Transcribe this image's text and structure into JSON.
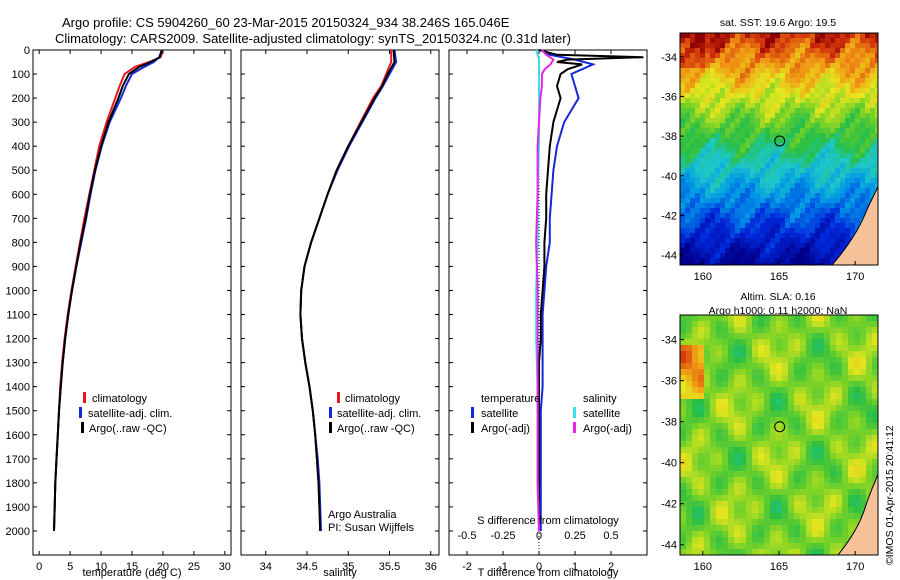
{
  "header": {
    "line1": "Argo profile: CS 5904260_60 23-Mar-2015 20150324_934 38.246S 165.046E",
    "line2": "Climatology: CARS2009. Satellite-adjusted climatology: synTS_20150324.nc (0.31d later)"
  },
  "depth_ticks": [
    "0",
    "100",
    "200",
    "300",
    "400",
    "500",
    "600",
    "700",
    "800",
    "900",
    "1000",
    "1100",
    "1200",
    "1300",
    "1400",
    "1500",
    "1600",
    "1700",
    "1800",
    "1900",
    "2000"
  ],
  "colors": {
    "climatology": "#e8191d",
    "satellite": "#1428d8",
    "argo": "#000000",
    "cyan": "#39e0e8",
    "magenta": "#e624e6",
    "land": "#f5c29a"
  },
  "chart_data": [
    {
      "type": "line",
      "name": "temperature-profile",
      "xlabel": "temperature (deg C)",
      "xlim": [
        -1,
        31
      ],
      "ylim": [
        0,
        2100
      ],
      "x_ticks": [
        "0",
        "5",
        "10",
        "15",
        "20",
        "25",
        "30"
      ],
      "legend": [
        "climatology",
        "satellite-adj. clim.",
        "Argo(..raw -QC)"
      ],
      "series": [
        {
          "name": "climatology",
          "depth": [
            0,
            30,
            50,
            70,
            100,
            150,
            200,
            300,
            400,
            500,
            600,
            700,
            800,
            900,
            1000,
            1100,
            1200,
            1300,
            1400,
            1500,
            1600,
            1700,
            1800,
            1900,
            2000
          ],
          "values": [
            20.0,
            19.6,
            17.8,
            15.5,
            13.8,
            13.0,
            12.3,
            10.9,
            9.7,
            8.9,
            8.1,
            7.3,
            6.6,
            5.9,
            5.2,
            4.6,
            4.1,
            3.7,
            3.4,
            3.2,
            3.0,
            2.8,
            2.6,
            2.5,
            2.4
          ]
        },
        {
          "name": "satellite-adj. clim.",
          "depth": [
            0,
            30,
            50,
            70,
            100,
            150,
            200,
            300,
            400,
            500,
            600,
            700,
            800,
            900,
            1000,
            1100,
            1200,
            1300,
            1400,
            1500,
            1600,
            1700,
            1800,
            1900,
            2000
          ],
          "values": [
            19.8,
            19.4,
            18.5,
            17.0,
            15.0,
            14.0,
            13.2,
            11.4,
            10.1,
            9.1,
            8.3,
            7.6,
            6.8,
            6.0,
            5.3,
            4.7,
            4.2,
            3.8,
            3.5,
            3.2,
            3.0,
            2.8,
            2.6,
            2.5,
            2.4
          ]
        },
        {
          "name": "Argo(..raw -QC)",
          "depth": [
            0,
            30,
            50,
            70,
            100,
            150,
            200,
            300,
            400,
            500,
            600,
            700,
            800,
            900,
            1000,
            1100,
            1200,
            1300,
            1400,
            1500,
            1600,
            1700,
            1800,
            1900,
            2000
          ],
          "values": [
            19.9,
            19.5,
            18.0,
            16.2,
            14.5,
            13.5,
            12.8,
            11.2,
            10.0,
            9.0,
            8.2,
            7.5,
            6.7,
            6.0,
            5.3,
            4.7,
            4.2,
            3.8,
            3.5,
            3.2,
            3.0,
            2.8,
            2.6,
            2.5,
            2.4
          ]
        }
      ]
    },
    {
      "type": "line",
      "name": "salinity-profile",
      "xlabel": "salinity",
      "xlim": [
        33.7,
        36.1
      ],
      "ylim": [
        0,
        2100
      ],
      "x_ticks": [
        "34",
        "34.5",
        "35",
        "35.5",
        "36"
      ],
      "legend": [
        "climatology",
        "satellite-adj. clim.",
        "Argo(..raw -QC)"
      ],
      "annotation": [
        "Argo Australia",
        "PI: Susan Wijffels"
      ],
      "series": [
        {
          "name": "climatology",
          "depth": [
            0,
            50,
            100,
            150,
            200,
            300,
            400,
            500,
            600,
            700,
            800,
            900,
            1000,
            1100,
            1200,
            1300,
            1400,
            1500,
            1600,
            1700,
            1800,
            1900,
            2000
          ],
          "values": [
            35.52,
            35.52,
            35.46,
            35.4,
            35.3,
            35.15,
            35.0,
            34.86,
            34.75,
            34.65,
            34.55,
            34.47,
            34.43,
            34.42,
            34.44,
            34.48,
            34.53,
            34.57,
            34.6,
            34.62,
            34.64,
            34.65,
            34.66
          ]
        },
        {
          "name": "satellite-adj. clim.",
          "depth": [
            0,
            50,
            100,
            150,
            200,
            300,
            400,
            500,
            600,
            700,
            800,
            900,
            1000,
            1100,
            1200,
            1300,
            1400,
            1500,
            1600,
            1700,
            1800,
            1900,
            2000
          ],
          "values": [
            35.56,
            35.58,
            35.5,
            35.42,
            35.33,
            35.17,
            35.01,
            34.87,
            34.75,
            34.65,
            34.55,
            34.47,
            34.43,
            34.42,
            34.44,
            34.48,
            34.53,
            34.57,
            34.6,
            34.63,
            34.65,
            34.66,
            34.67
          ]
        },
        {
          "name": "Argo(..raw -QC)",
          "depth": [
            0,
            50,
            100,
            150,
            200,
            300,
            400,
            500,
            600,
            700,
            800,
            900,
            1000,
            1100,
            1200,
            1300,
            1400,
            1500,
            1600,
            1700,
            1800,
            1900,
            2000
          ],
          "values": [
            35.55,
            35.56,
            35.48,
            35.41,
            35.32,
            35.16,
            35.0,
            34.86,
            34.75,
            34.65,
            34.55,
            34.47,
            34.43,
            34.42,
            34.44,
            34.48,
            34.53,
            34.57,
            34.6,
            34.62,
            34.64,
            34.65,
            34.66
          ]
        }
      ]
    },
    {
      "type": "line",
      "name": "difference-profile",
      "xlabel": "T difference from climatology",
      "xlabel_top": "S difference from climatology",
      "xlim": [
        -2.5,
        3.0
      ],
      "ylim": [
        0,
        2100
      ],
      "x_ticks": [
        "-2",
        "-1",
        "0",
        "1",
        "2"
      ],
      "x_ticks_top": [
        "-0.5",
        "-0.25",
        "0",
        "0.25",
        "0.5"
      ],
      "legend": {
        "temperature_header": "temperature",
        "salinity_header": "salinity",
        "satellite": "satellite",
        "argo": "Argo(-adj)"
      },
      "series": [
        {
          "name": "T satellite",
          "depth": [
            0,
            20,
            40,
            60,
            80,
            100,
            150,
            200,
            250,
            300,
            400,
            500,
            600,
            700,
            800,
            900,
            1000,
            1100,
            1200,
            1300,
            1400,
            1500,
            1600,
            1800,
            2000
          ],
          "values": [
            0.1,
            0.3,
            1.0,
            1.5,
            1.2,
            0.9,
            1.0,
            1.1,
            0.9,
            0.7,
            0.5,
            0.4,
            0.35,
            0.3,
            0.3,
            0.2,
            0.15,
            0.1,
            0.1,
            0.1,
            0.1,
            0.05,
            0.05,
            0.05,
            0.05
          ]
        },
        {
          "name": "T Argo(-adj)",
          "depth": [
            0,
            20,
            30,
            40,
            50,
            60,
            80,
            100,
            150,
            200,
            250,
            300,
            400,
            500,
            600,
            700,
            800,
            900,
            1000,
            1100,
            1200,
            1300,
            1400,
            1500,
            1600,
            1800,
            2000
          ],
          "values": [
            0.0,
            0.5,
            2.9,
            0.8,
            0.5,
            1.2,
            0.8,
            0.6,
            0.5,
            0.6,
            0.5,
            0.4,
            0.3,
            0.25,
            0.2,
            0.2,
            0.15,
            0.15,
            0.1,
            0.05,
            0.05,
            0.0,
            0.0,
            0.0,
            0.0,
            0.0,
            0.0
          ]
        },
        {
          "name": "S satellite",
          "depth": [
            0,
            20,
            40,
            60,
            80,
            100,
            200,
            300,
            400,
            600,
            800,
            1000,
            1200,
            1400,
            1600,
            1800,
            2000
          ],
          "values": [
            -0.02,
            -0.01,
            0.0,
            0.0,
            0.0,
            0.0,
            0.0,
            0.0,
            0.0,
            -0.01,
            -0.01,
            -0.02,
            -0.02,
            -0.01,
            -0.01,
            -0.01,
            0.0
          ]
        },
        {
          "name": "S Argo(-adj)",
          "depth": [
            0,
            20,
            40,
            60,
            80,
            100,
            150,
            200,
            300,
            400,
            600,
            800,
            1000,
            1200,
            1400,
            1600,
            1800,
            2000
          ],
          "values": [
            0.02,
            0.05,
            0.1,
            0.08,
            0.04,
            0.02,
            0.02,
            0.01,
            0.0,
            -0.01,
            -0.01,
            -0.02,
            -0.01,
            -0.01,
            -0.01,
            -0.01,
            -0.01,
            0.0
          ]
        }
      ]
    },
    {
      "type": "heatmap",
      "name": "sst-map",
      "title": "sat. SST: 19.6 Argo: 19.5",
      "xlim": [
        158.5,
        171.5
      ],
      "ylim": [
        -44.5,
        -32.8
      ],
      "x_ticks": [
        "160",
        "165",
        "170"
      ],
      "y_ticks": [
        "-34",
        "-36",
        "-38",
        "-40",
        "-42",
        "-44"
      ],
      "marker": {
        "lon": 165.046,
        "lat": -38.246
      }
    },
    {
      "type": "heatmap",
      "name": "sla-map",
      "title": "Altim. SLA: 0.16",
      "subtitle": "Argo h1000: 0.11 h2000: NaN",
      "xlim": [
        158.5,
        171.5
      ],
      "ylim": [
        -44.5,
        -32.8
      ],
      "x_ticks": [
        "160",
        "165",
        "170"
      ],
      "y_ticks": [
        "-34",
        "-36",
        "-38",
        "-40",
        "-42",
        "-44"
      ],
      "marker": {
        "lon": 165.046,
        "lat": -38.246
      }
    }
  ],
  "footer": {
    "credit": "©IMOS 01-Apr-2015 20:41:12"
  }
}
